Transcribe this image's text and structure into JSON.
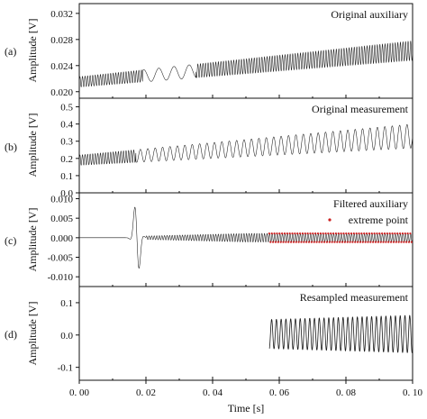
{
  "chart_data": {
    "type": "line",
    "xlabel": "Time [s]",
    "x_ticks": [
      "0. 00",
      "0. 02",
      "0. 04",
      "0. 06",
      "0. 08",
      "0. 10"
    ],
    "xlim": [
      0,
      0.1
    ],
    "colors": {
      "signal": "#1a1a1a",
      "extreme": "#cc2222",
      "axis": "#111111"
    },
    "panels": [
      {
        "id": "a",
        "label": "(a)",
        "title": "Original auxiliary",
        "ylabel": "Amplitude [V]",
        "ylim": [
          0.019,
          0.0335
        ],
        "y_ticks": [
          0.02,
          0.024,
          0.028,
          0.032
        ],
        "y_tick_labels": [
          "0.020",
          "0.024",
          "0.028",
          "0.032"
        ],
        "signal": {
          "baseline": [
            [
              0,
              0.0215
            ],
            [
              0.1,
              0.0263
            ]
          ],
          "half_amplitude": [
            [
              0,
              0.0008
            ],
            [
              0.1,
              0.0015
            ]
          ],
          "frequency_hz": 1300,
          "low_freq_segment": {
            "from": 0.019,
            "to": 0.035,
            "frequency_hz": 220
          }
        }
      },
      {
        "id": "b",
        "label": "(b)",
        "title": "Original measurement",
        "ylabel": "Amplitude [V]",
        "ylim": [
          0.0,
          0.55
        ],
        "y_ticks": [
          0.0,
          0.1,
          0.2,
          0.3,
          0.4,
          0.5
        ],
        "y_tick_labels": [
          "0.0",
          "0.1",
          "0.2",
          "0.3",
          "0.4",
          "0.5"
        ],
        "signal": {
          "baseline": [
            [
              0,
              0.19
            ],
            [
              0.1,
              0.33
            ]
          ],
          "half_amplitude": [
            [
              0,
              0.03
            ],
            [
              0.1,
              0.07
            ]
          ],
          "frequency_hz": 1300,
          "low_freq_segment": {
            "from": 0.017,
            "to": 0.1,
            "frequency_hz": 450
          }
        }
      },
      {
        "id": "c",
        "label": "(c)",
        "title": "Filtered auxiliary",
        "ylabel": "Amplitude [V]",
        "ylim": [
          -0.0125,
          0.0115
        ],
        "y_ticks": [
          -0.01,
          -0.005,
          0.0,
          0.005,
          0.01
        ],
        "y_tick_labels": [
          "-0.010",
          "-0.005",
          "0.000",
          "0.005",
          "0.010"
        ],
        "legend": {
          "label": "extreme point",
          "position": "top-right"
        },
        "signal": {
          "pulse_center": 0.0173,
          "pulse_peak": 0.0112,
          "pulse_trough": -0.0115,
          "steady_amplitude": 0.0011,
          "steady_frequency_hz": 1300,
          "extreme_points_from": 0.057
        }
      },
      {
        "id": "d",
        "label": "(d)",
        "title": "Resampled measurement",
        "ylabel": "Amplitude [V]",
        "ylim": [
          -0.14,
          0.15
        ],
        "y_ticks": [
          -0.1,
          0.0,
          0.1
        ],
        "y_tick_labels": [
          "-0.1",
          "0.0",
          "0.1"
        ],
        "signal": {
          "start": 0.057,
          "end": 0.1,
          "half_amplitude": [
            [
              0.057,
              0.045
            ],
            [
              0.1,
              0.058
            ]
          ],
          "frequency_hz": 700,
          "offset": 0.003
        }
      }
    ]
  }
}
